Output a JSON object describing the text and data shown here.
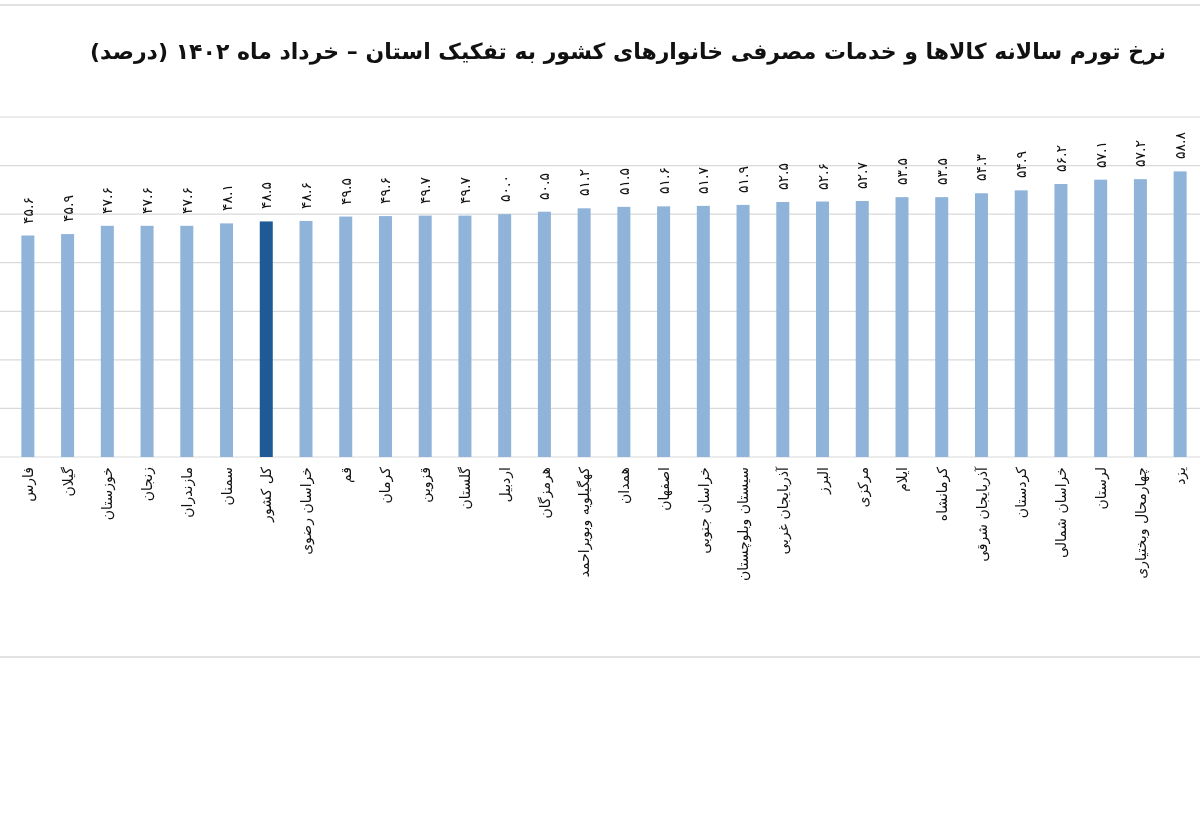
{
  "chart_data": {
    "type": "bar",
    "title": "نرخ تورم سالانه کالاها و خدمات مصرفی خانوارهای کشور به تفکیک استان – خرداد ماه ۱۴۰۲ (درصد)",
    "categories": [
      "فارس",
      "گیلان",
      "خوزستان",
      "زنجان",
      "مازندران",
      "سمنان",
      "کل کشور",
      "خراسان رضوی",
      "قم",
      "کرمان",
      "قزوین",
      "گلستان",
      "اردبیل",
      "هرمزگان",
      "کهگیلویه وبویراحمد",
      "همدان",
      "اصفهان",
      "خراسان جنوبی",
      "سیستان وبلوچستان",
      "آذربایجان غربی",
      "البرز",
      "مرکزی",
      "ایلام",
      "کرمانشاه",
      "آذربایجان شرقی",
      "کردستان",
      "خراسان شمالی",
      "لرستان",
      "چهارمحال وبختیاری",
      "یزد"
    ],
    "values": [
      45.6,
      45.9,
      47.6,
      47.6,
      47.6,
      48.1,
      48.5,
      48.6,
      49.5,
      49.6,
      49.7,
      49.7,
      50.0,
      50.5,
      51.2,
      51.5,
      51.6,
      51.7,
      51.9,
      52.5,
      52.6,
      52.7,
      53.5,
      53.5,
      54.3,
      54.9,
      56.2,
      57.1,
      57.2,
      58.8
    ],
    "value_labels": [
      "۴۵.۶",
      "۴۵.۹",
      "۴۷.۶",
      "۴۷.۶",
      "۴۷.۶",
      "۴۸.۱",
      "۴۸.۵",
      "۴۸.۶",
      "۴۹.۵",
      "۴۹.۶",
      "۴۹.۷",
      "۴۹.۷",
      "۵۰.۰",
      "۵۰.۵",
      "۵۱.۲",
      "۵۱.۵",
      "۵۱.۶",
      "۵۱.۷",
      "۵۱.۹",
      "۵۲.۵",
      "۵۲.۶",
      "۵۲.۷",
      "۵۳.۵",
      "۵۳.۵",
      "۵۴.۳",
      "۵۴.۹",
      "۵۶.۲",
      "۵۷.۱",
      "۵۷.۲",
      "۵۸.۸"
    ],
    "colors": [
      "#8fb3d9",
      "#8fb3d9",
      "#8fb3d9",
      "#8fb3d9",
      "#8fb3d9",
      "#8fb3d9",
      "#1f5a96",
      "#8fb3d9",
      "#8fb3d9",
      "#8fb3d9",
      "#8fb3d9",
      "#8fb3d9",
      "#8fb3d9",
      "#8fb3d9",
      "#8fb3d9",
      "#8fb3d9",
      "#8fb3d9",
      "#8fb3d9",
      "#8fb3d9",
      "#8fb3d9",
      "#8fb3d9",
      "#8fb3d9",
      "#8fb3d9",
      "#8fb3d9",
      "#8fb3d9",
      "#8fb3d9",
      "#8fb3d9",
      "#8fb3d9",
      "#8fb3d9",
      "#8fb3d9"
    ],
    "ylim": [
      0,
      70
    ],
    "yticks": [
      {
        "value": 0,
        "label": null
      },
      {
        "value": 10,
        "label": null
      },
      {
        "value": 20,
        "label": null
      },
      {
        "value": 30,
        "label": null
      },
      {
        "value": 40,
        "label": null
      },
      {
        "value": 50,
        "label": null
      },
      {
        "value": 60,
        "label": null
      },
      {
        "value": 70,
        "label": null
      }
    ],
    "grid": "y",
    "tick_labels": "x"
  }
}
